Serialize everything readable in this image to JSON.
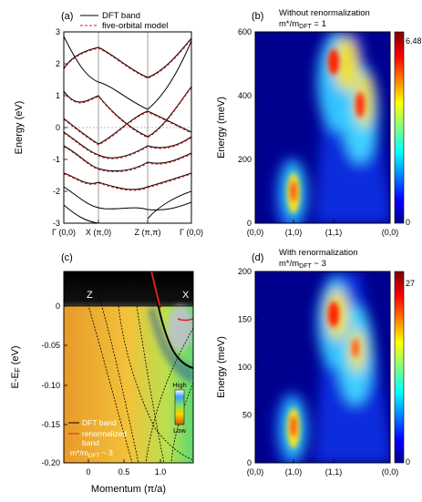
{
  "figure": {
    "panels": {
      "a": {
        "letter": "(a)",
        "ylabel": "Energy (eV)",
        "yticks": [
          "3",
          "2",
          "1",
          "0",
          "-1",
          "-2",
          "-3"
        ],
        "xticks": [
          "Γ (0,0)",
          "X (π,0)",
          "Z (π,π)",
          "Γ (0,0)"
        ],
        "legend": [
          "DFT band",
          "five-orbital model"
        ]
      },
      "b": {
        "letter": "(b)",
        "title1": "Without renormalization",
        "title2": "m*/m",
        "title2_sub": "DFT",
        "title2_tail": " = 1",
        "ylabel": "Energy (meV)",
        "yticks": [
          "600",
          "400",
          "200",
          "0"
        ],
        "xticks": [
          "(0,0)",
          "(1,0)",
          "(1,1)",
          "(0,0)"
        ],
        "cbar_max": "6.48",
        "cbar_min": "0"
      },
      "c": {
        "letter": "(c)",
        "ylabel": "E-E",
        "ylabel_sub": "F",
        "ylabel_tail": " (eV)",
        "xlabel": "Momentum (π/a)",
        "yticks": [
          "0",
          "-0.05",
          "-0.10",
          "-0.15",
          "-0.20"
        ],
        "xticks": [
          "0",
          "0.5",
          "1.0"
        ],
        "label_Z": "Z",
        "label_X": "X",
        "cbar_high": "High",
        "cbar_low": "Low",
        "legend1": "DFT band",
        "legend2a": "renormalized",
        "legend2b": "band",
        "legend3": "m*/m",
        "legend3_sub": "DFT",
        "legend3_tail": " ~ 3"
      },
      "d": {
        "letter": "(d)",
        "title1": "With renormalization",
        "title2": "m*/m",
        "title2_sub": "DFT",
        "title2_tail": " ~ 3",
        "ylabel": "Energy (meV)",
        "yticks": [
          "200",
          "150",
          "100",
          "50",
          "0"
        ],
        "xticks": [
          "(0,0)",
          "(1,0)",
          "(1,1)",
          "(0,0)"
        ],
        "cbar_max": "27",
        "cbar_min": "0"
      }
    },
    "colors": {
      "dft": "#000000",
      "model": "#d62020",
      "renorm": "#d62020"
    }
  }
}
